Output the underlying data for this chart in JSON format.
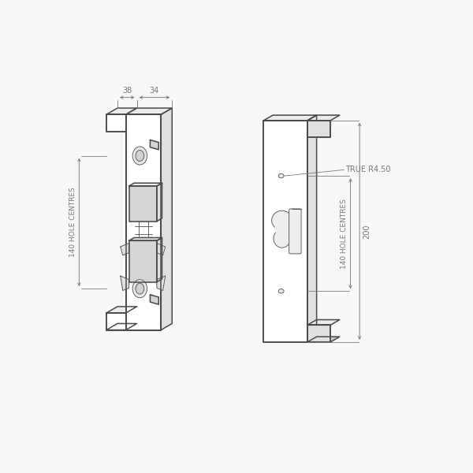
{
  "bg_color": "#f7f7f7",
  "line_color": "#4a4a4a",
  "dim_color": "#7a7a7a",
  "face_color": "#ffffff",
  "side_color": "#e0e0e0",
  "top_color": "#ebebeb",
  "dark_color": "#c8c8c8",
  "mech_color": "#d5d5d5",
  "dim_38": "38",
  "dim_34": "34",
  "dim_140_left": "140 HOLE CENTRES",
  "dim_140_right": "140 HOLE CENTRES",
  "dim_200": "200",
  "dim_true_r": "TRUE R4.50"
}
